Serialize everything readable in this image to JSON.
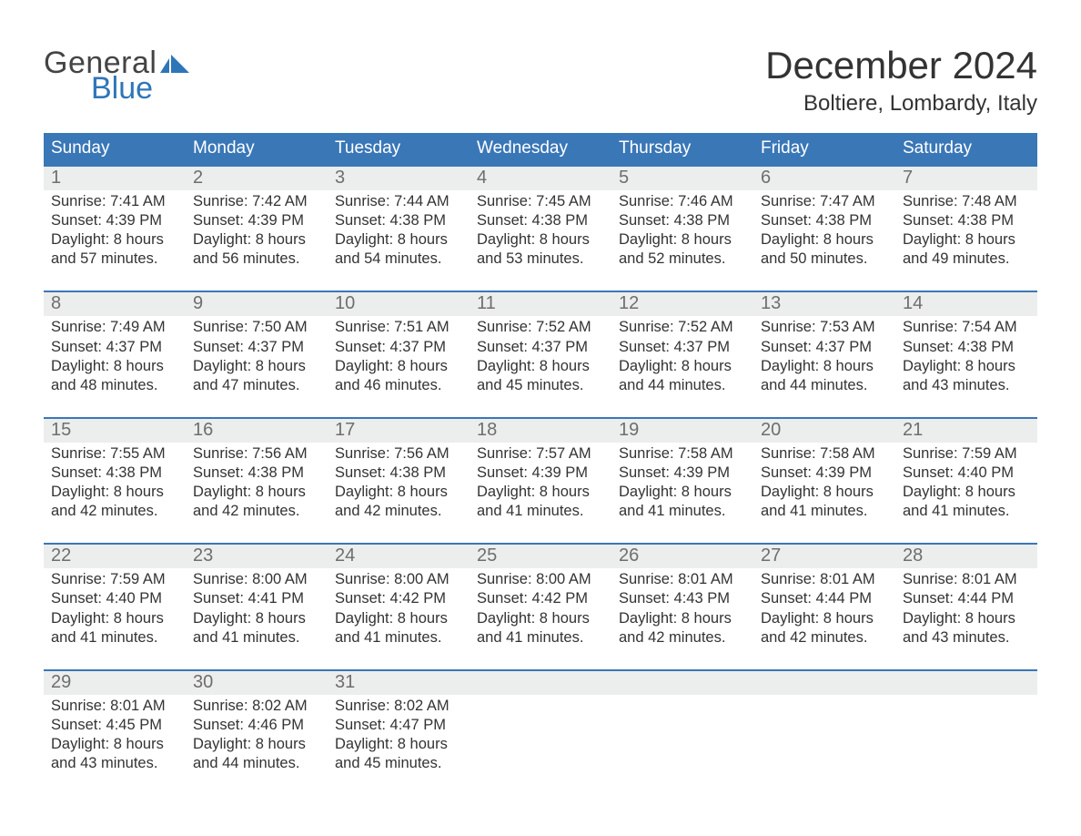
{
  "brand": {
    "line1": "General",
    "line2": "Blue"
  },
  "title": "December 2024",
  "location": "Boltiere, Lombardy, Italy",
  "colors": {
    "header_bg": "#3a77b7",
    "header_text": "#ffffff",
    "daynum_bg": "#eceded",
    "daynum_text": "#6e6e6e",
    "body_text": "#333333",
    "rule": "#3a77b7",
    "brand_blue": "#2f76b8"
  },
  "days_of_week": [
    "Sunday",
    "Monday",
    "Tuesday",
    "Wednesday",
    "Thursday",
    "Friday",
    "Saturday"
  ],
  "weeks": [
    [
      {
        "n": "1",
        "sunrise": "7:41 AM",
        "sunset": "4:39 PM",
        "day_h": "8",
        "day_m": "57"
      },
      {
        "n": "2",
        "sunrise": "7:42 AM",
        "sunset": "4:39 PM",
        "day_h": "8",
        "day_m": "56"
      },
      {
        "n": "3",
        "sunrise": "7:44 AM",
        "sunset": "4:38 PM",
        "day_h": "8",
        "day_m": "54"
      },
      {
        "n": "4",
        "sunrise": "7:45 AM",
        "sunset": "4:38 PM",
        "day_h": "8",
        "day_m": "53"
      },
      {
        "n": "5",
        "sunrise": "7:46 AM",
        "sunset": "4:38 PM",
        "day_h": "8",
        "day_m": "52"
      },
      {
        "n": "6",
        "sunrise": "7:47 AM",
        "sunset": "4:38 PM",
        "day_h": "8",
        "day_m": "50"
      },
      {
        "n": "7",
        "sunrise": "7:48 AM",
        "sunset": "4:38 PM",
        "day_h": "8",
        "day_m": "49"
      }
    ],
    [
      {
        "n": "8",
        "sunrise": "7:49 AM",
        "sunset": "4:37 PM",
        "day_h": "8",
        "day_m": "48"
      },
      {
        "n": "9",
        "sunrise": "7:50 AM",
        "sunset": "4:37 PM",
        "day_h": "8",
        "day_m": "47"
      },
      {
        "n": "10",
        "sunrise": "7:51 AM",
        "sunset": "4:37 PM",
        "day_h": "8",
        "day_m": "46"
      },
      {
        "n": "11",
        "sunrise": "7:52 AM",
        "sunset": "4:37 PM",
        "day_h": "8",
        "day_m": "45"
      },
      {
        "n": "12",
        "sunrise": "7:52 AM",
        "sunset": "4:37 PM",
        "day_h": "8",
        "day_m": "44"
      },
      {
        "n": "13",
        "sunrise": "7:53 AM",
        "sunset": "4:37 PM",
        "day_h": "8",
        "day_m": "44"
      },
      {
        "n": "14",
        "sunrise": "7:54 AM",
        "sunset": "4:38 PM",
        "day_h": "8",
        "day_m": "43"
      }
    ],
    [
      {
        "n": "15",
        "sunrise": "7:55 AM",
        "sunset": "4:38 PM",
        "day_h": "8",
        "day_m": "42"
      },
      {
        "n": "16",
        "sunrise": "7:56 AM",
        "sunset": "4:38 PM",
        "day_h": "8",
        "day_m": "42"
      },
      {
        "n": "17",
        "sunrise": "7:56 AM",
        "sunset": "4:38 PM",
        "day_h": "8",
        "day_m": "42"
      },
      {
        "n": "18",
        "sunrise": "7:57 AM",
        "sunset": "4:39 PM",
        "day_h": "8",
        "day_m": "41"
      },
      {
        "n": "19",
        "sunrise": "7:58 AM",
        "sunset": "4:39 PM",
        "day_h": "8",
        "day_m": "41"
      },
      {
        "n": "20",
        "sunrise": "7:58 AM",
        "sunset": "4:39 PM",
        "day_h": "8",
        "day_m": "41"
      },
      {
        "n": "21",
        "sunrise": "7:59 AM",
        "sunset": "4:40 PM",
        "day_h": "8",
        "day_m": "41"
      }
    ],
    [
      {
        "n": "22",
        "sunrise": "7:59 AM",
        "sunset": "4:40 PM",
        "day_h": "8",
        "day_m": "41"
      },
      {
        "n": "23",
        "sunrise": "8:00 AM",
        "sunset": "4:41 PM",
        "day_h": "8",
        "day_m": "41"
      },
      {
        "n": "24",
        "sunrise": "8:00 AM",
        "sunset": "4:42 PM",
        "day_h": "8",
        "day_m": "41"
      },
      {
        "n": "25",
        "sunrise": "8:00 AM",
        "sunset": "4:42 PM",
        "day_h": "8",
        "day_m": "41"
      },
      {
        "n": "26",
        "sunrise": "8:01 AM",
        "sunset": "4:43 PM",
        "day_h": "8",
        "day_m": "42"
      },
      {
        "n": "27",
        "sunrise": "8:01 AM",
        "sunset": "4:44 PM",
        "day_h": "8",
        "day_m": "42"
      },
      {
        "n": "28",
        "sunrise": "8:01 AM",
        "sunset": "4:44 PM",
        "day_h": "8",
        "day_m": "43"
      }
    ],
    [
      {
        "n": "29",
        "sunrise": "8:01 AM",
        "sunset": "4:45 PM",
        "day_h": "8",
        "day_m": "43"
      },
      {
        "n": "30",
        "sunrise": "8:02 AM",
        "sunset": "4:46 PM",
        "day_h": "8",
        "day_m": "44"
      },
      {
        "n": "31",
        "sunrise": "8:02 AM",
        "sunset": "4:47 PM",
        "day_h": "8",
        "day_m": "45"
      },
      null,
      null,
      null,
      null
    ]
  ],
  "labels": {
    "sunrise": "Sunrise:",
    "sunset": "Sunset:",
    "daylight1": "Daylight:",
    "hours": "hours",
    "and": "and",
    "minutes": "minutes."
  }
}
